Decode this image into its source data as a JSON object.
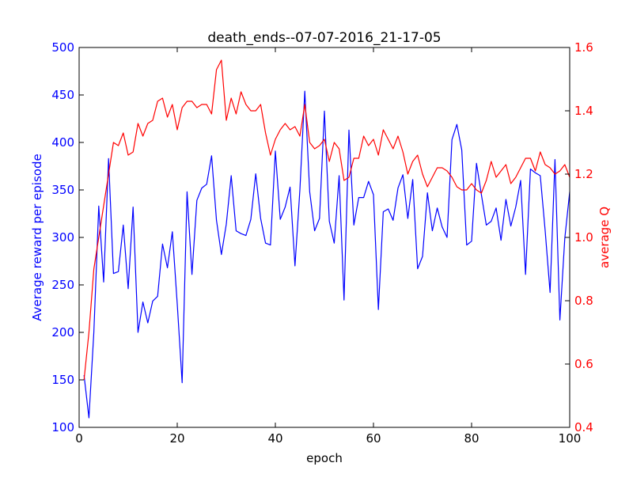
{
  "chart_data": {
    "type": "line",
    "title": "death_ends--07-07-2016_21-17-05",
    "xlabel": "epoch",
    "xlim": [
      0,
      100
    ],
    "x_ticks": [
      0,
      20,
      40,
      60,
      80,
      100
    ],
    "grid": false,
    "legend": "none",
    "left_axis": {
      "label": "Average reward per episode",
      "color": "#0000ff",
      "ylim": [
        100,
        500
      ],
      "ticks": [
        100,
        150,
        200,
        250,
        300,
        350,
        400,
        450,
        500
      ]
    },
    "right_axis": {
      "label": "average Q",
      "color": "#ff0000",
      "ylim": [
        0.4,
        1.6
      ],
      "ticks": [
        "0.4",
        "0.6",
        "0.8",
        "1.0",
        "1.2",
        "1.4",
        "1.6"
      ]
    },
    "x": [
      1,
      2,
      3,
      4,
      5,
      6,
      7,
      8,
      9,
      10,
      11,
      12,
      13,
      14,
      15,
      16,
      17,
      18,
      19,
      20,
      21,
      22,
      23,
      24,
      25,
      26,
      27,
      28,
      29,
      30,
      31,
      32,
      33,
      34,
      35,
      36,
      37,
      38,
      39,
      40,
      41,
      42,
      43,
      44,
      45,
      46,
      47,
      48,
      49,
      50,
      51,
      52,
      53,
      54,
      55,
      56,
      57,
      58,
      59,
      60,
      61,
      62,
      63,
      64,
      65,
      66,
      67,
      68,
      69,
      70,
      71,
      72,
      73,
      74,
      75,
      76,
      77,
      78,
      79,
      80,
      81,
      82,
      83,
      84,
      85,
      86,
      87,
      88,
      89,
      90,
      91,
      92,
      93,
      94,
      95,
      96,
      97,
      98,
      99,
      100
    ],
    "series": [
      {
        "axis": "left",
        "color": "#0000ff",
        "values": [
          155,
          110,
          200,
          333,
          253,
          383,
          262,
          264,
          313,
          246,
          332,
          200,
          232,
          210,
          233,
          238,
          293,
          268,
          306,
          230,
          147,
          348,
          261,
          339,
          352,
          356,
          386,
          318,
          282,
          314,
          365,
          307,
          304,
          302,
          319,
          367,
          320,
          294,
          292,
          391,
          319,
          332,
          353,
          270,
          350,
          454,
          348,
          307,
          320,
          433,
          317,
          294,
          365,
          234,
          413,
          313,
          342,
          342,
          359,
          345,
          224,
          327,
          330,
          318,
          352,
          366,
          320,
          361,
          267,
          280,
          347,
          307,
          331,
          311,
          300,
          403,
          419,
          392,
          292,
          296,
          378,
          345,
          313,
          317,
          331,
          297,
          340,
          312,
          332,
          360,
          261,
          372,
          368,
          365,
          307,
          242,
          382,
          213,
          299,
          348
        ]
      },
      {
        "axis": "right",
        "color": "#ff0000",
        "values": [
          0.55,
          0.7,
          0.9,
          1.0,
          1.1,
          1.2,
          1.3,
          1.29,
          1.33,
          1.26,
          1.27,
          1.36,
          1.32,
          1.36,
          1.37,
          1.43,
          1.44,
          1.38,
          1.42,
          1.34,
          1.41,
          1.43,
          1.43,
          1.41,
          1.42,
          1.42,
          1.39,
          1.53,
          1.56,
          1.37,
          1.44,
          1.39,
          1.46,
          1.42,
          1.4,
          1.4,
          1.42,
          1.33,
          1.26,
          1.31,
          1.34,
          1.36,
          1.34,
          1.35,
          1.32,
          1.42,
          1.3,
          1.28,
          1.29,
          1.31,
          1.24,
          1.3,
          1.28,
          1.18,
          1.19,
          1.25,
          1.25,
          1.32,
          1.29,
          1.31,
          1.26,
          1.34,
          1.31,
          1.28,
          1.32,
          1.27,
          1.2,
          1.24,
          1.26,
          1.2,
          1.16,
          1.19,
          1.22,
          1.22,
          1.21,
          1.19,
          1.16,
          1.15,
          1.15,
          1.17,
          1.15,
          1.14,
          1.18,
          1.24,
          1.19,
          1.21,
          1.23,
          1.17,
          1.19,
          1.22,
          1.25,
          1.25,
          1.21,
          1.27,
          1.23,
          1.22,
          1.2,
          1.21,
          1.23,
          1.19
        ]
      }
    ]
  }
}
